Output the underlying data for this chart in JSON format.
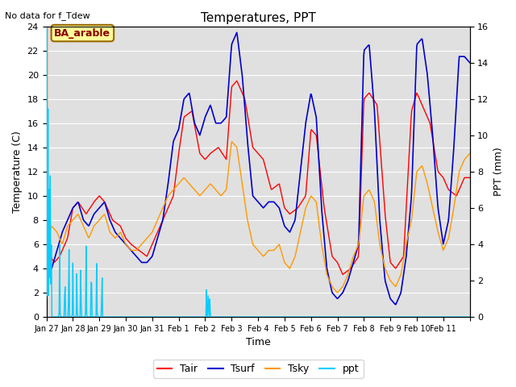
{
  "title": "Temperatures, PPT",
  "subtitle": "No data for f_Tdew",
  "xlabel": "Time",
  "ylabel_left": "Temperature (C)",
  "ylabel_right": "PPT (mm)",
  "annotation": "BA_arable",
  "ylim_left": [
    0,
    24
  ],
  "ylim_right": [
    0,
    16
  ],
  "yticks_left": [
    0,
    2,
    4,
    6,
    8,
    10,
    12,
    14,
    16,
    18,
    20,
    22,
    24
  ],
  "yticks_right": [
    0,
    2,
    4,
    6,
    8,
    10,
    12,
    14,
    16
  ],
  "xtick_positions": [
    0,
    1,
    2,
    3,
    4,
    5,
    6,
    7,
    8,
    9,
    10,
    11,
    12,
    13,
    14,
    15,
    16
  ],
  "xtick_labels": [
    "Jan 27",
    "Jan 28",
    "Jan 29",
    "Jan 30",
    "Jan 31",
    "Feb 1",
    "Feb 2",
    "Feb 3",
    "Feb 4",
    "Feb 5",
    "Feb 6",
    "Feb 7",
    "Feb 8",
    "Feb 9",
    "Feb 10",
    "Feb 11",
    ""
  ],
  "colors": {
    "Tair": "#ff0000",
    "Tsurf": "#0000cc",
    "Tsky": "#ff9900",
    "ppt": "#00ccff",
    "background": "#e0e0e0",
    "annotation_bg": "#ffff99",
    "annotation_border": "#996600"
  },
  "legend": [
    "Tair",
    "Tsurf",
    "Tsky",
    "ppt"
  ]
}
